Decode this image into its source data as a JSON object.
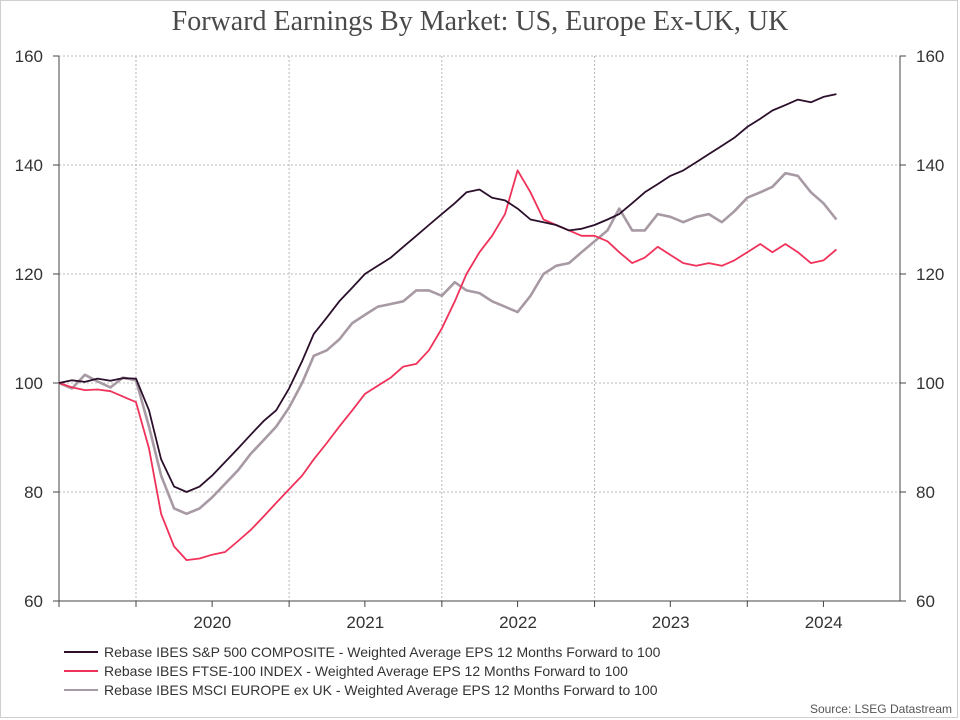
{
  "title": "Forward Earnings By Market: US, Europe Ex-UK, UK",
  "source": "Source: LSEG Datastream",
  "chart_data": {
    "type": "line",
    "title": "Forward Earnings By Market: US, Europe Ex-UK, UK",
    "xlabel": "",
    "ylabel": "",
    "xlim": [
      "2019-07-01",
      "2024-12-31"
    ],
    "ylim": [
      60,
      160
    ],
    "yticks": [
      60,
      80,
      100,
      120,
      140,
      160
    ],
    "xtick_labels": [
      "2020",
      "2021",
      "2022",
      "2023",
      "2024"
    ],
    "grid": true,
    "dual_y_axis": true,
    "legend_position": "bottom",
    "series": [
      {
        "name": "Rebase IBES S&P 500 COMPOSITE - Weighted Average EPS 12 Months Forward to 100",
        "color": "#2b0f2b",
        "points": [
          [
            "2019-07-01",
            100
          ],
          [
            "2019-08-01",
            100.5
          ],
          [
            "2019-09-01",
            100.2
          ],
          [
            "2019-10-01",
            100.8
          ],
          [
            "2019-11-01",
            100.4
          ],
          [
            "2019-12-01",
            100.9
          ],
          [
            "2020-01-01",
            100.8
          ],
          [
            "2020-02-01",
            95
          ],
          [
            "2020-03-01",
            86
          ],
          [
            "2020-04-01",
            81
          ],
          [
            "2020-05-01",
            80
          ],
          [
            "2020-06-01",
            81
          ],
          [
            "2020-07-01",
            83
          ],
          [
            "2020-08-01",
            85.5
          ],
          [
            "2020-09-01",
            88
          ],
          [
            "2020-10-01",
            90.5
          ],
          [
            "2020-11-01",
            93
          ],
          [
            "2020-12-01",
            95
          ],
          [
            "2021-01-01",
            99
          ],
          [
            "2021-02-01",
            104
          ],
          [
            "2021-03-01",
            109
          ],
          [
            "2021-04-01",
            112
          ],
          [
            "2021-05-01",
            115
          ],
          [
            "2021-06-01",
            117.5
          ],
          [
            "2021-07-01",
            120
          ],
          [
            "2021-08-01",
            121.5
          ],
          [
            "2021-09-01",
            123
          ],
          [
            "2021-10-01",
            125
          ],
          [
            "2021-11-01",
            127
          ],
          [
            "2021-12-01",
            129
          ],
          [
            "2022-01-01",
            131
          ],
          [
            "2022-02-01",
            133
          ],
          [
            "2022-03-01",
            135
          ],
          [
            "2022-04-01",
            135.5
          ],
          [
            "2022-05-01",
            134
          ],
          [
            "2022-06-01",
            133.5
          ],
          [
            "2022-07-01",
            132
          ],
          [
            "2022-08-01",
            130
          ],
          [
            "2022-09-01",
            129.5
          ],
          [
            "2022-10-01",
            129
          ],
          [
            "2022-11-01",
            128
          ],
          [
            "2022-12-01",
            128.3
          ],
          [
            "2023-01-01",
            129
          ],
          [
            "2023-02-01",
            130
          ],
          [
            "2023-03-01",
            131
          ],
          [
            "2023-04-01",
            133
          ],
          [
            "2023-05-01",
            135
          ],
          [
            "2023-06-01",
            136.5
          ],
          [
            "2023-07-01",
            138
          ],
          [
            "2023-08-01",
            139
          ],
          [
            "2023-09-01",
            140.5
          ],
          [
            "2023-10-01",
            142
          ],
          [
            "2023-11-01",
            143.5
          ],
          [
            "2023-12-01",
            145
          ],
          [
            "2024-01-01",
            147
          ],
          [
            "2024-02-01",
            148.5
          ],
          [
            "2024-03-01",
            150
          ],
          [
            "2024-04-01",
            151
          ],
          [
            "2024-05-01",
            152
          ],
          [
            "2024-06-01",
            151.5
          ],
          [
            "2024-07-01",
            152.5
          ],
          [
            "2024-08-01",
            153
          ]
        ]
      },
      {
        "name": "Rebase IBES FTSE-100 INDEX - Weighted Average EPS 12 Months Forward to 100",
        "color": "#f0325a",
        "points": [
          [
            "2019-07-01",
            100
          ],
          [
            "2019-08-01",
            99.2
          ],
          [
            "2019-09-01",
            98.7
          ],
          [
            "2019-10-01",
            98.8
          ],
          [
            "2019-11-01",
            98.5
          ],
          [
            "2019-12-01",
            97.5
          ],
          [
            "2020-01-01",
            96.5
          ],
          [
            "2020-02-01",
            88
          ],
          [
            "2020-03-01",
            76
          ],
          [
            "2020-04-01",
            70
          ],
          [
            "2020-05-01",
            67.5
          ],
          [
            "2020-06-01",
            67.8
          ],
          [
            "2020-07-01",
            68.5
          ],
          [
            "2020-08-01",
            69
          ],
          [
            "2020-09-01",
            71
          ],
          [
            "2020-10-01",
            73
          ],
          [
            "2020-11-01",
            75.5
          ],
          [
            "2020-12-01",
            78
          ],
          [
            "2021-01-01",
            80.5
          ],
          [
            "2021-02-01",
            83
          ],
          [
            "2021-03-01",
            86
          ],
          [
            "2021-04-01",
            89
          ],
          [
            "2021-05-01",
            92
          ],
          [
            "2021-06-01",
            95
          ],
          [
            "2021-07-01",
            98
          ],
          [
            "2021-08-01",
            99.5
          ],
          [
            "2021-09-01",
            101
          ],
          [
            "2021-10-01",
            103
          ],
          [
            "2021-11-01",
            103.5
          ],
          [
            "2021-12-01",
            106
          ],
          [
            "2022-01-01",
            110
          ],
          [
            "2022-02-01",
            115
          ],
          [
            "2022-03-01",
            120
          ],
          [
            "2022-04-01",
            124
          ],
          [
            "2022-05-01",
            127
          ],
          [
            "2022-06-01",
            131
          ],
          [
            "2022-07-01",
            139
          ],
          [
            "2022-08-01",
            135
          ],
          [
            "2022-09-01",
            130
          ],
          [
            "2022-10-01",
            129
          ],
          [
            "2022-11-01",
            128
          ],
          [
            "2022-12-01",
            127
          ],
          [
            "2023-01-01",
            127
          ],
          [
            "2023-02-01",
            126
          ],
          [
            "2023-03-01",
            124
          ],
          [
            "2023-04-01",
            122
          ],
          [
            "2023-05-01",
            123
          ],
          [
            "2023-06-01",
            125
          ],
          [
            "2023-07-01",
            123.5
          ],
          [
            "2023-08-01",
            122
          ],
          [
            "2023-09-01",
            121.5
          ],
          [
            "2023-10-01",
            122
          ],
          [
            "2023-11-01",
            121.5
          ],
          [
            "2023-12-01",
            122.5
          ],
          [
            "2024-01-01",
            124
          ],
          [
            "2024-02-01",
            125.5
          ],
          [
            "2024-03-01",
            124
          ],
          [
            "2024-04-01",
            125.5
          ],
          [
            "2024-05-01",
            124
          ],
          [
            "2024-06-01",
            122
          ],
          [
            "2024-07-01",
            122.5
          ],
          [
            "2024-08-01",
            124.5
          ]
        ]
      },
      {
        "name": "Rebase IBES MSCI EUROPE ex UK - Weighted Average EPS 12 Months Forward to 100",
        "color": "#a89aa4",
        "points": [
          [
            "2019-07-01",
            100
          ],
          [
            "2019-08-01",
            99
          ],
          [
            "2019-09-01",
            101.5
          ],
          [
            "2019-10-01",
            100.3
          ],
          [
            "2019-11-01",
            99.2
          ],
          [
            "2019-12-01",
            101
          ],
          [
            "2020-01-01",
            100.5
          ],
          [
            "2020-02-01",
            92
          ],
          [
            "2020-03-01",
            83
          ],
          [
            "2020-04-01",
            77
          ],
          [
            "2020-05-01",
            76
          ],
          [
            "2020-06-01",
            77
          ],
          [
            "2020-07-01",
            79
          ],
          [
            "2020-08-01",
            81.5
          ],
          [
            "2020-09-01",
            84
          ],
          [
            "2020-10-01",
            87
          ],
          [
            "2020-11-01",
            89.5
          ],
          [
            "2020-12-01",
            92
          ],
          [
            "2021-01-01",
            95.5
          ],
          [
            "2021-02-01",
            100
          ],
          [
            "2021-03-01",
            105
          ],
          [
            "2021-04-01",
            106
          ],
          [
            "2021-05-01",
            108
          ],
          [
            "2021-06-01",
            111
          ],
          [
            "2021-07-01",
            112.5
          ],
          [
            "2021-08-01",
            114
          ],
          [
            "2021-09-01",
            114.5
          ],
          [
            "2021-10-01",
            115
          ],
          [
            "2021-11-01",
            117
          ],
          [
            "2021-12-01",
            117
          ],
          [
            "2022-01-01",
            116
          ],
          [
            "2022-02-01",
            118.5
          ],
          [
            "2022-03-01",
            117
          ],
          [
            "2022-04-01",
            116.5
          ],
          [
            "2022-05-01",
            115
          ],
          [
            "2022-06-01",
            114
          ],
          [
            "2022-07-01",
            113
          ],
          [
            "2022-08-01",
            116
          ],
          [
            "2022-09-01",
            120
          ],
          [
            "2022-10-01",
            121.5
          ],
          [
            "2022-11-01",
            122
          ],
          [
            "2022-12-01",
            124
          ],
          [
            "2023-01-01",
            126
          ],
          [
            "2023-02-01",
            128
          ],
          [
            "2023-03-01",
            132
          ],
          [
            "2023-04-01",
            128
          ],
          [
            "2023-05-01",
            128
          ],
          [
            "2023-06-01",
            131
          ],
          [
            "2023-07-01",
            130.5
          ],
          [
            "2023-08-01",
            129.5
          ],
          [
            "2023-09-01",
            130.5
          ],
          [
            "2023-10-01",
            131
          ],
          [
            "2023-11-01",
            129.5
          ],
          [
            "2023-12-01",
            131.5
          ],
          [
            "2024-01-01",
            134
          ],
          [
            "2024-02-01",
            135
          ],
          [
            "2024-03-01",
            136
          ],
          [
            "2024-04-01",
            138.5
          ],
          [
            "2024-05-01",
            138
          ],
          [
            "2024-06-01",
            135
          ],
          [
            "2024-07-01",
            133
          ],
          [
            "2024-08-01",
            130
          ]
        ]
      }
    ]
  }
}
